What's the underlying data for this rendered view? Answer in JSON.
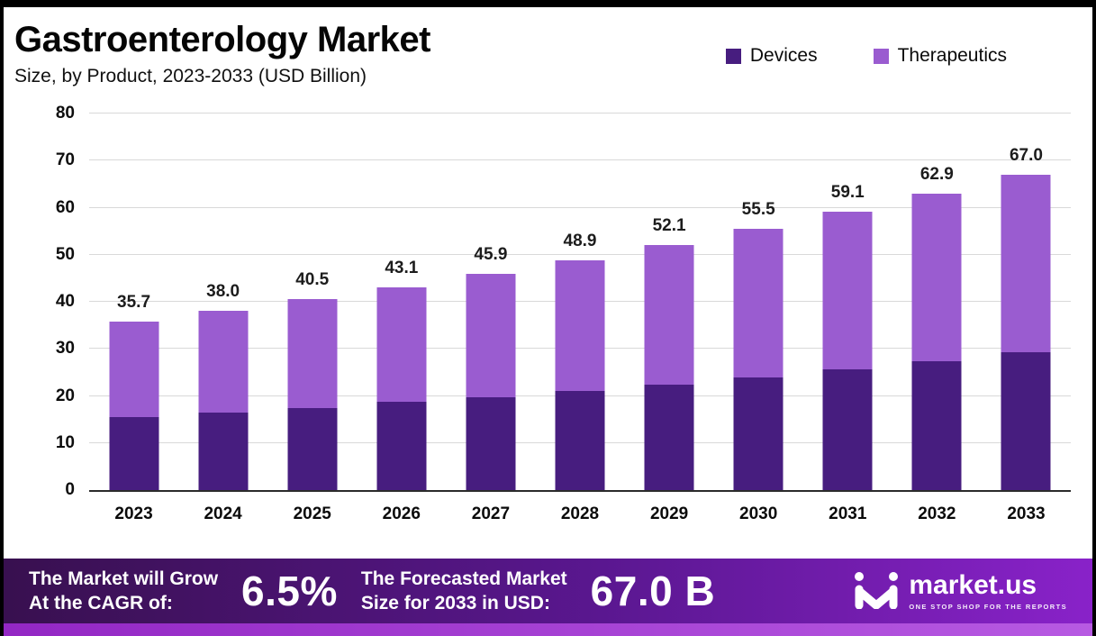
{
  "title": "Gastroenterology Market",
  "subtitle": "Size, by Product, 2023-2033 (USD Billion)",
  "legend": {
    "items": [
      {
        "label": "Devices",
        "color": "#471d7f"
      },
      {
        "label": "Therapeutics",
        "color": "#9a5cd0"
      }
    ]
  },
  "chart_data": {
    "type": "bar",
    "stacked": true,
    "title": "Gastroenterology Market Size, by Product, 2023-2033 (USD Billion)",
    "categories": [
      "2023",
      "2024",
      "2025",
      "2026",
      "2027",
      "2028",
      "2029",
      "2030",
      "2031",
      "2032",
      "2033"
    ],
    "series": [
      {
        "name": "Devices",
        "color": "#471d7f",
        "values": [
          15.5,
          16.4,
          17.4,
          18.7,
          19.8,
          21.1,
          22.4,
          24.0,
          25.6,
          27.3,
          29.2
        ]
      },
      {
        "name": "Therapeutics",
        "color": "#9a5cd0",
        "values": [
          20.2,
          21.6,
          23.1,
          24.4,
          26.1,
          27.8,
          29.7,
          31.5,
          33.5,
          35.6,
          37.8
        ]
      }
    ],
    "totals": [
      35.7,
      38.0,
      40.5,
      43.1,
      45.9,
      48.9,
      52.1,
      55.5,
      59.1,
      62.9,
      67.0
    ],
    "total_labels": [
      "35.7",
      "38.0",
      "40.5",
      "43.1",
      "45.9",
      "48.9",
      "52.1",
      "55.5",
      "59.1",
      "62.9",
      "67.0"
    ],
    "xlabel": "",
    "ylabel": "",
    "ylim": [
      0,
      80
    ],
    "ytick_step": 10,
    "yticks": [
      "0",
      "10",
      "20",
      "30",
      "40",
      "50",
      "60",
      "70",
      "80"
    ],
    "grid": true,
    "legend_position": "top-right"
  },
  "banner": {
    "cagr_label": "The Market will Grow\nAt the CAGR of:",
    "cagr_value": "6.5%",
    "forecast_label": "The Forecasted Market\nSize for 2033 in USD:",
    "forecast_value": "67.0 B",
    "brand": "market.us",
    "brand_tagline": "ONE STOP SHOP FOR THE REPORTS"
  }
}
